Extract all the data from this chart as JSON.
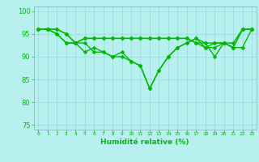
{
  "line1": [
    96,
    96,
    96,
    95,
    93,
    93,
    91,
    91,
    90,
    91,
    89,
    88,
    83,
    87,
    90,
    92,
    93,
    94,
    93,
    90,
    93,
    92,
    92,
    96
  ],
  "line2": [
    96,
    96,
    96,
    95,
    93,
    94,
    94,
    94,
    94,
    94,
    94,
    94,
    94,
    94,
    94,
    94,
    94,
    93,
    93,
    93,
    93,
    93,
    96,
    96
  ],
  "line3": [
    96,
    96,
    95,
    93,
    93,
    91,
    92,
    91,
    90,
    90,
    89,
    88,
    83,
    87,
    90,
    92,
    93,
    94,
    92,
    93,
    93,
    92,
    96,
    96
  ],
  "line4": [
    96,
    96,
    95,
    93,
    93,
    94,
    94,
    94,
    94,
    94,
    94,
    94,
    94,
    94,
    94,
    94,
    94,
    93,
    92,
    92,
    93,
    92,
    96,
    96
  ],
  "x": [
    0,
    1,
    2,
    3,
    4,
    5,
    6,
    7,
    8,
    9,
    10,
    11,
    12,
    13,
    14,
    15,
    16,
    17,
    18,
    19,
    20,
    21,
    22,
    23
  ],
  "ylim": [
    74,
    101
  ],
  "yticks": [
    75,
    80,
    85,
    90,
    95,
    100
  ],
  "xtick_labels": [
    "0",
    "1",
    "2",
    "3",
    "4",
    "5",
    "6",
    "7",
    "8",
    "9",
    "10",
    "11",
    "12",
    "13",
    "14",
    "15",
    "16",
    "17",
    "18",
    "19",
    "20",
    "21",
    "22",
    "23"
  ],
  "xlabel": "Humidité relative (%)",
  "line_color": "#00bb00",
  "bg_color": "#b8f0f0",
  "grid_color": "#99dddd",
  "marker": "D",
  "markersize": 2.5,
  "linewidth": 1.0
}
